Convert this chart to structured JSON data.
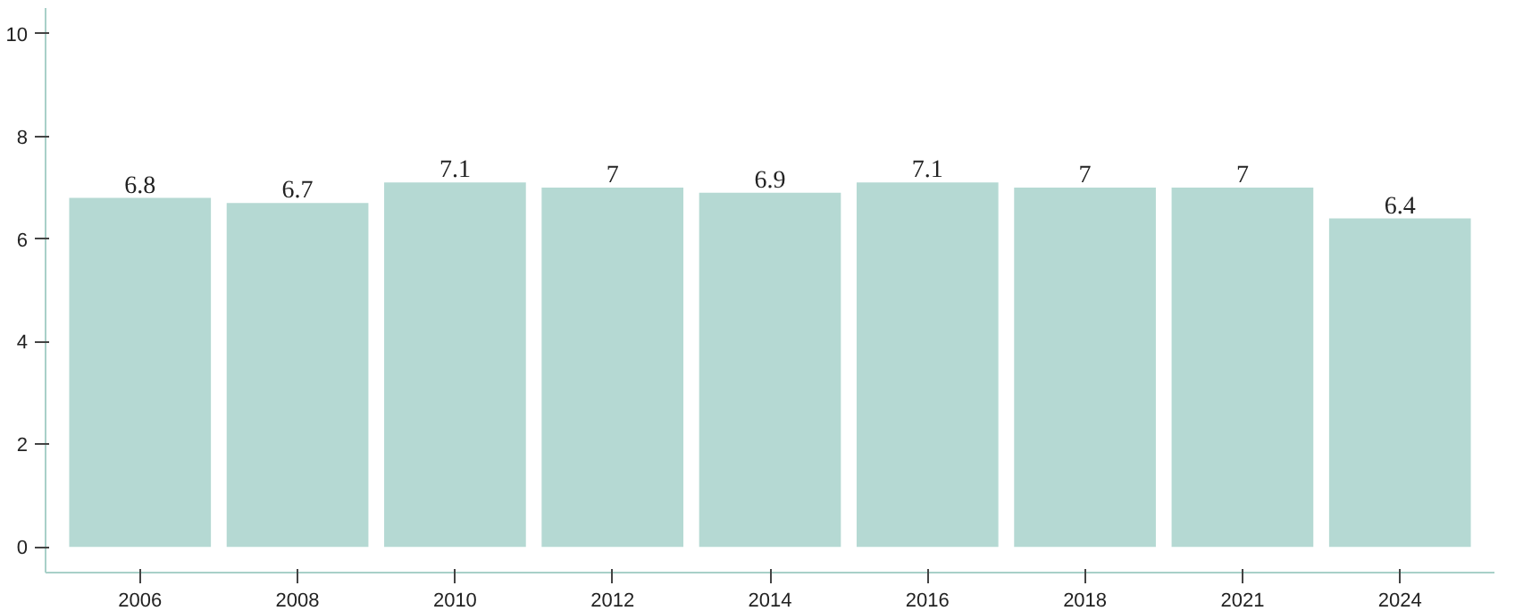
{
  "chart_data": {
    "type": "bar",
    "categories": [
      "2006",
      "2008",
      "2010",
      "2012",
      "2014",
      "2016",
      "2018",
      "2021",
      "2024"
    ],
    "values": [
      6.8,
      6.7,
      7.1,
      7,
      6.9,
      7.1,
      7,
      7,
      6.4
    ],
    "color": "#b5d9d3",
    "ylim": [
      -0.5,
      10.5
    ],
    "yticks": [
      0,
      2,
      4,
      6,
      8,
      10
    ],
    "grid": false,
    "data_labels": true
  }
}
